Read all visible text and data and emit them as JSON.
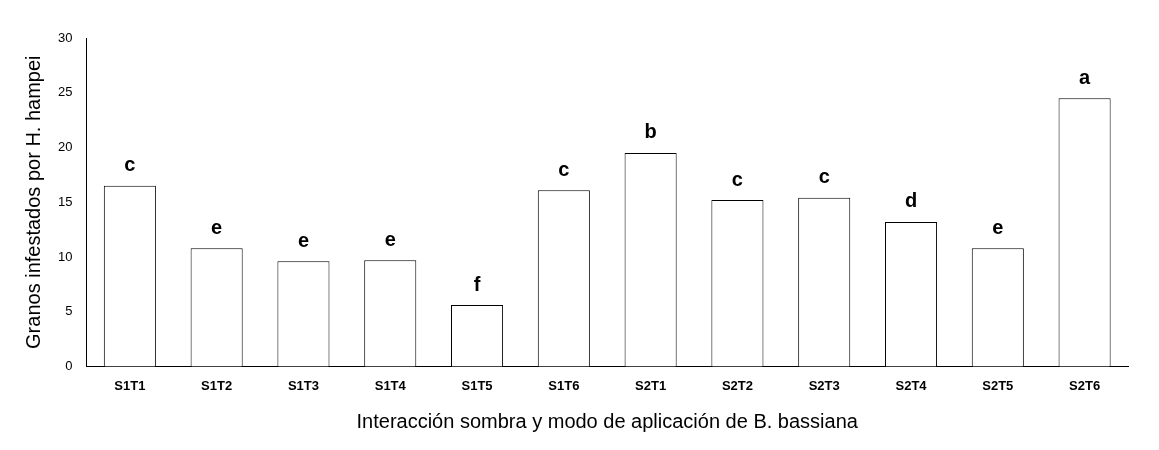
{
  "chart_data": {
    "type": "bar",
    "xlabel": "Interacción sombra y modo de aplicación de B. bassiana",
    "ylabel": "Granos infestados por H. hampei",
    "categories": [
      "S1T1",
      "S1T2",
      "S1T3",
      "S1T4",
      "S1T5",
      "S1T6",
      "S2T1",
      "S2T2",
      "S2T3",
      "S2T4",
      "S2T5",
      "S2T6"
    ],
    "values": [
      16.5,
      10.8,
      9.6,
      9.7,
      5.6,
      16.1,
      19.5,
      15.2,
      15.4,
      13.2,
      10.8,
      24.5
    ],
    "value_labels": [
      "c",
      "e",
      "e",
      "e",
      "f",
      "c",
      "b",
      "c",
      "c",
      "d",
      "e",
      "a"
    ],
    "color": "#ffffff",
    "ylim": [
      0,
      30
    ],
    "yticks": [
      0,
      5,
      10,
      15,
      20,
      25,
      30
    ],
    "grid": false,
    "legend": false
  }
}
